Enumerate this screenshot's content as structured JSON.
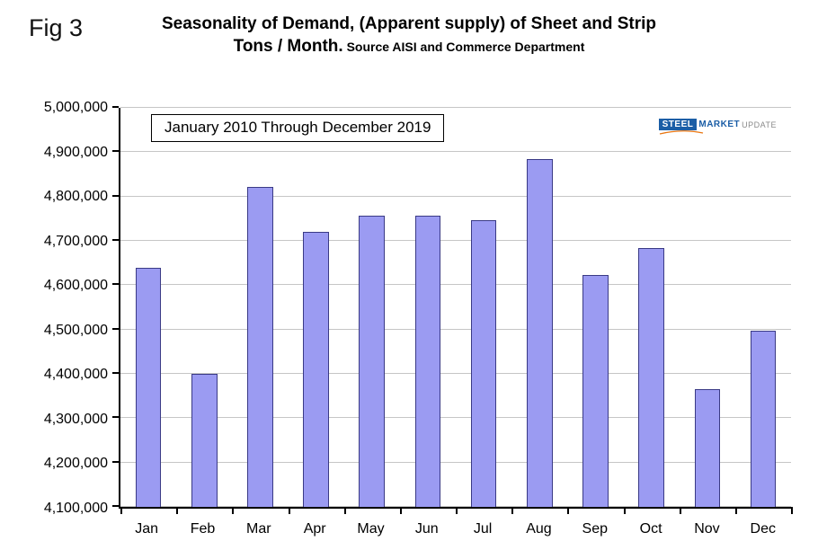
{
  "fig_label": "Fig 3",
  "title": {
    "line1": "Seasonality of Demand, (Apparent supply) of Sheet and Strip",
    "line2_main": "Tons / Month.",
    "line2_source": " Source AISI and Commerce Department"
  },
  "annotation": "January 2010 Through December 2019",
  "logo": {
    "steel": "STEEL",
    "market": "MARKET",
    "update": "UPDATE"
  },
  "colors": {
    "bar_fill": "#9b9bf2",
    "bar_border": "#3a3a85",
    "gridline": "#c6c6c6",
    "axis": "#000000",
    "logo_blue": "#1b5ea6",
    "logo_orange": "#e87511"
  },
  "chart_data": {
    "type": "bar",
    "title": "Seasonality of Demand, (Apparent supply) of Sheet and Strip Tons / Month. Source AISI and Commerce Department",
    "subtitle": "January 2010 Through December 2019",
    "categories": [
      "Jan",
      "Feb",
      "Mar",
      "Apr",
      "May",
      "Jun",
      "Jul",
      "Aug",
      "Sep",
      "Oct",
      "Nov",
      "Dec"
    ],
    "values": [
      4640000,
      4400000,
      4822000,
      4720000,
      4757000,
      4756000,
      4746000,
      4884000,
      4622000,
      4684000,
      4366000,
      4498000
    ],
    "xlabel": "",
    "ylabel": "",
    "ylim": [
      4100000,
      5000000
    ],
    "ytick_step": 100000,
    "yticks": [
      4100000,
      4200000,
      4300000,
      4400000,
      4500000,
      4600000,
      4700000,
      4800000,
      4900000,
      5000000
    ],
    "grid": "horizontal",
    "legend": "none"
  }
}
